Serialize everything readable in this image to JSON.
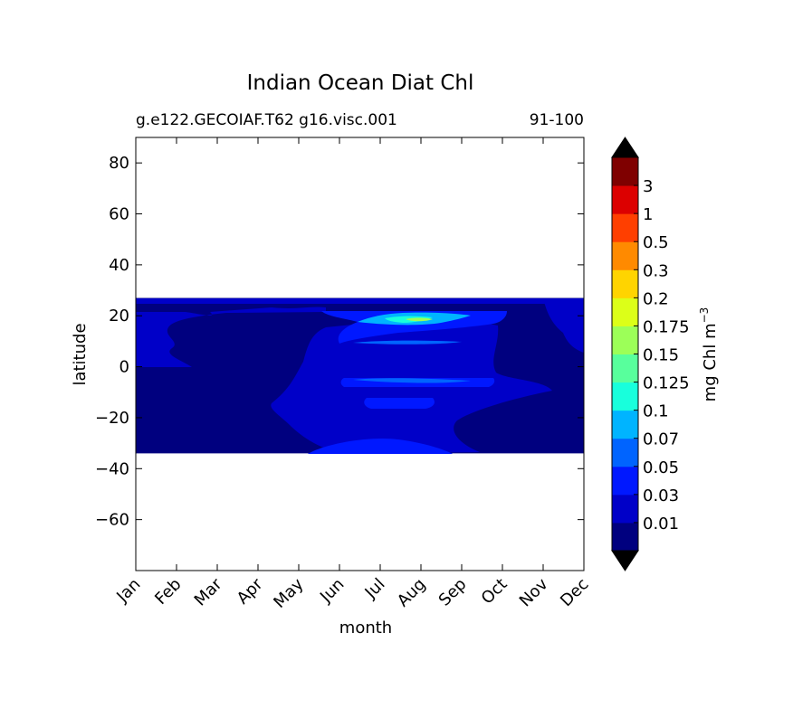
{
  "chart_data": {
    "type": "contour",
    "title": "Indian Ocean Diat Chl",
    "subtitle_left": "g.e122.GECOIAF.T62 g16.visc.001",
    "subtitle_right": "91-100",
    "xlabel": "month",
    "ylabel": "latitude",
    "x_ticks": [
      "Jan",
      "Feb",
      "Mar",
      "Apr",
      "May",
      "Jun",
      "Jul",
      "Aug",
      "Sep",
      "Oct",
      "Nov",
      "Dec"
    ],
    "xlim": [
      0,
      11
    ],
    "ylim": [
      -80,
      90
    ],
    "y_ticks": [
      80,
      60,
      40,
      20,
      0,
      -20,
      -40,
      -60
    ],
    "y_tick_labels": [
      "80",
      "60",
      "40",
      "20",
      "0",
      "−20",
      "−40",
      "−60"
    ],
    "data_lat_range": [
      -34,
      27
    ],
    "colorbar": {
      "label": "mg Chl m",
      "label_exponent": "−3",
      "levels": [
        "0.01",
        "0.03",
        "0.05",
        "0.07",
        "0.1",
        "0.125",
        "0.15",
        "0.175",
        "0.2",
        "0.3",
        "0.5",
        "1",
        "3"
      ],
      "colors": [
        "#00007f",
        "#0000c8",
        "#0018ff",
        "#0064ff",
        "#00b4ff",
        "#18ffdc",
        "#58ff9c",
        "#9cff58",
        "#dcff18",
        "#ffd400",
        "#ff8a00",
        "#ff3f00",
        "#dc0000",
        "#7f0000"
      ],
      "under_color": "#000000",
      "over_color": "#000000"
    },
    "regions": [
      {
        "name": "deep-background",
        "value_level": 0,
        "month_range": [
          0,
          11
        ],
        "lat_range": [
          -34,
          27
        ]
      },
      {
        "name": "west-upper-band",
        "value_level": 1,
        "month_range": [
          0,
          1.2
        ],
        "lat_range": [
          1,
          23
        ]
      },
      {
        "name": "mid-summer-band",
        "value_level": 1,
        "month_range": [
          3.5,
          8.8
        ],
        "lat_range": [
          -30,
          22
        ]
      },
      {
        "name": "east-edge-band",
        "value_level": 1,
        "month_range": [
          10.2,
          11
        ],
        "lat_range": [
          7,
          27
        ]
      },
      {
        "name": "aug-bloom-outer",
        "value_level": 3,
        "month_range": [
          6.7,
          7.9
        ],
        "lat_range": [
          16,
          21
        ]
      },
      {
        "name": "aug-bloom-core",
        "value_level": 4,
        "month_range": [
          6.9,
          7.5
        ],
        "lat_range": [
          17,
          20
        ]
      }
    ]
  }
}
